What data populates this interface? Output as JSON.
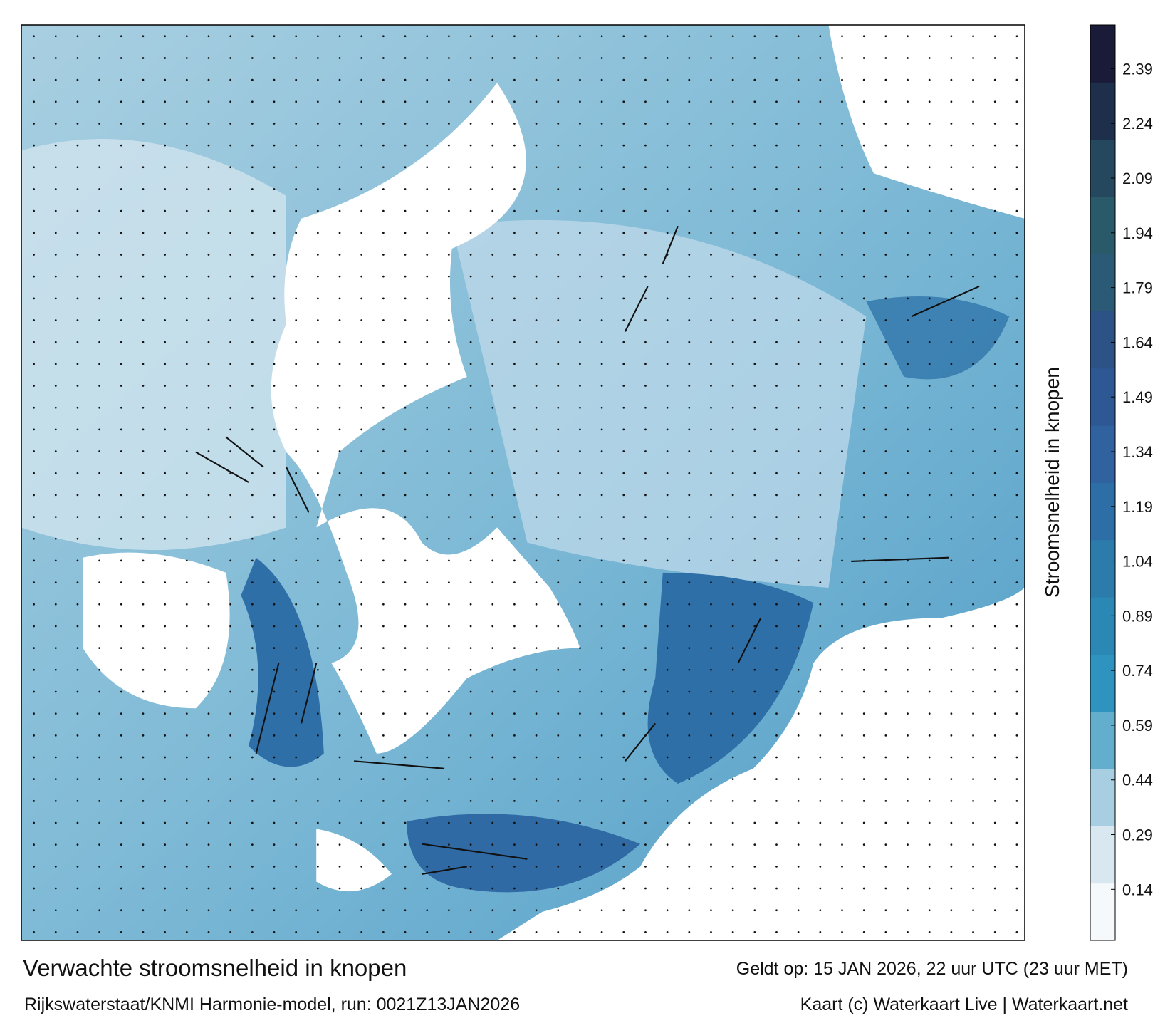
{
  "title": "Verwachte stroomsnelheid in knopen",
  "model_run": "Rijkswaterstaat/KNMI Harmonie-model, run: 0021Z13JAN2026",
  "valid_time": "Geldt op: 15 JAN 2026, 22 uur UTC (23 uur MET)",
  "credit": "Kaart (c) Waterkaart Live | Waterkaart.net",
  "colorbar": {
    "label": "Stroomsnelheid in knopen",
    "range": [
      0,
      2.51
    ],
    "ticks": [
      0.14,
      0.29,
      0.44,
      0.59,
      0.74,
      0.89,
      1.04,
      1.19,
      1.34,
      1.49,
      1.64,
      1.79,
      1.94,
      2.09,
      2.24,
      2.39
    ],
    "colors": [
      "#f6f9fc",
      "#d9e8f0",
      "#a8cfe1",
      "#63aecd",
      "#2f93bf",
      "#2b88b4",
      "#2b7cab",
      "#2e6ea6",
      "#30629f",
      "#2e5894",
      "#2d5285",
      "#2b5a77",
      "#2a5a6a",
      "#26485f",
      "#1d2f4b",
      "#1a1b38"
    ]
  }
}
